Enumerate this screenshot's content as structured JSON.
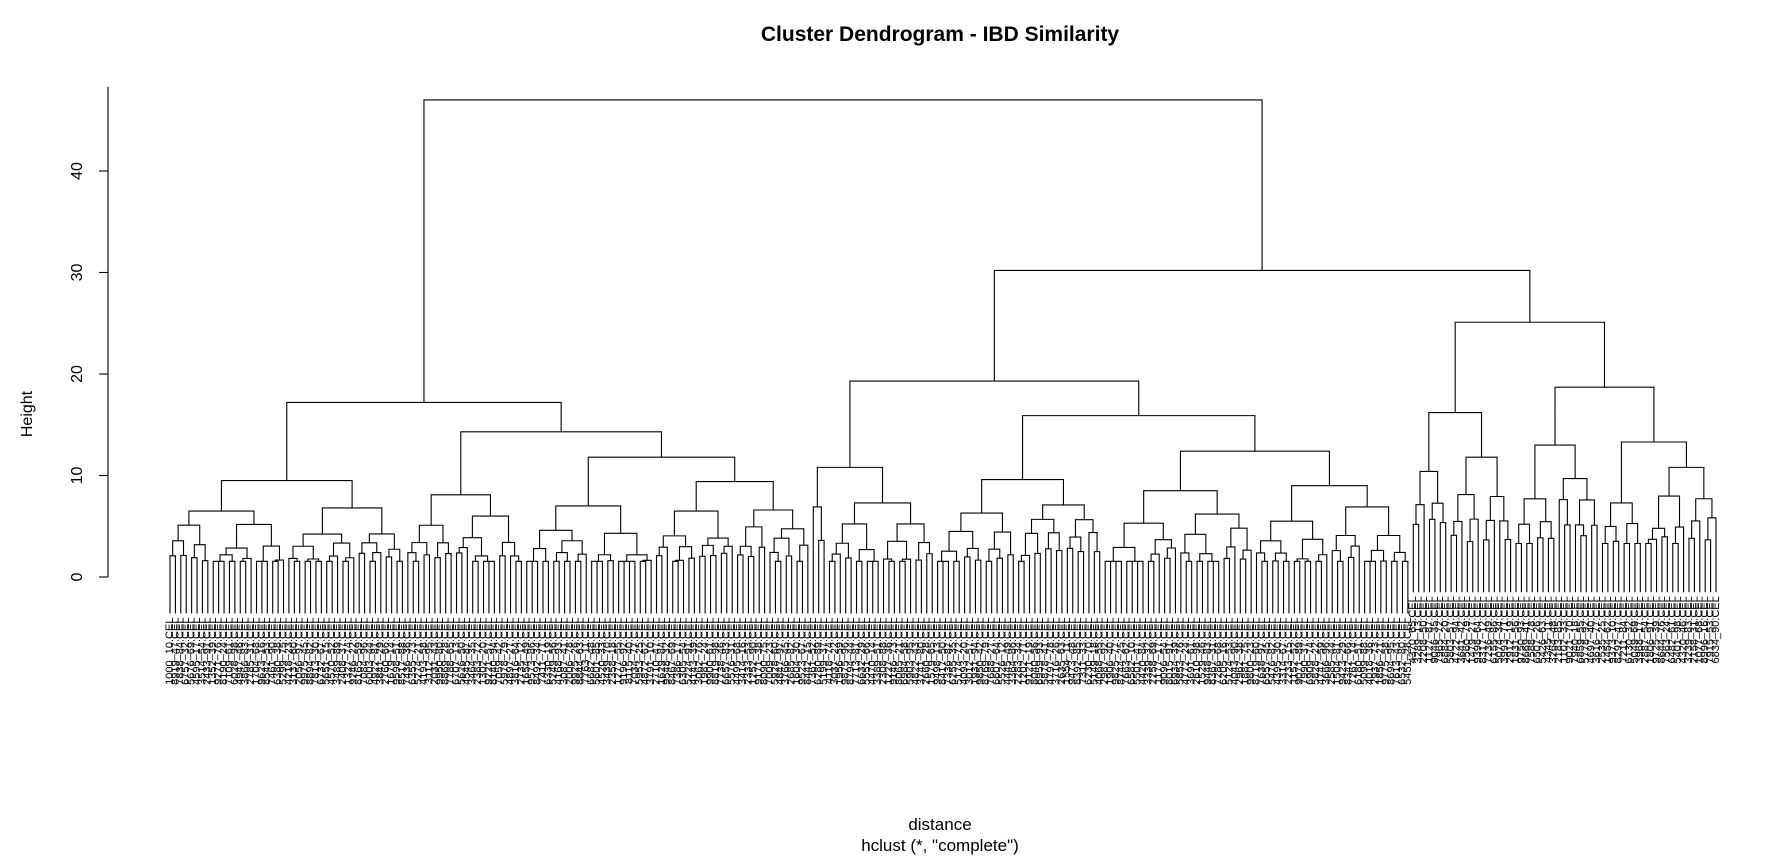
{
  "chart_data": {
    "type": "dendrogram",
    "title": "Cluster Dendrogram - IBD Similarity",
    "ylabel": "Height",
    "xlabel": "distance",
    "subtitle": "hclust (*, \"complete\")",
    "ylim": [
      0,
      48
    ],
    "yticks": [
      0,
      10,
      20,
      30,
      40
    ],
    "leaf_count": 300,
    "label_suffix": ".CEL",
    "merge_heights": {
      "root": 47,
      "left_cluster": 17.2,
      "left_a": 9.5,
      "left_b": 14.3,
      "left_b1": 8.1,
      "left_b2": 11.8,
      "left_b2_i": 7.0,
      "left_b2_ii": 9.4,
      "right_cluster": 30.2,
      "right_mid": 19.3,
      "right_mid_a": 10.8,
      "right_mid_b": 15.9,
      "right_mid_b1": 9.6,
      "right_mid_b2": 12.4,
      "right_mid_b2_i": 8.5,
      "right_mid_b2_ii": 9.0,
      "right_far": 25.1,
      "right_far_a": 16.2,
      "right_far_b": 18.7,
      "right_far_b1": 13.0,
      "right_far_b2": 13.3
    }
  }
}
